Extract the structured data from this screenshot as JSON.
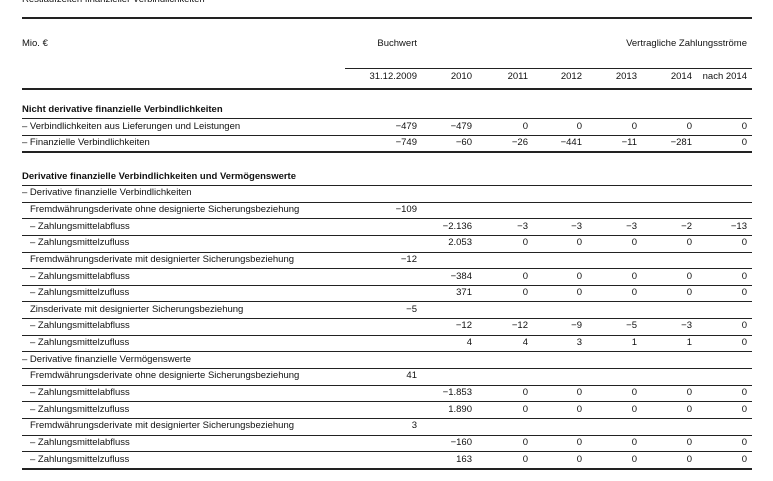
{
  "title": "Restlaufzeiten finanzieller Verbindlichkeiten",
  "table": {
    "unit": "Mio. €",
    "book_header": "Buchwert",
    "flow_header": "Vertragliche Zahlungsströme",
    "book_date": "31.12.2009",
    "years": [
      "2010",
      "2011",
      "2012",
      "2013",
      "2014",
      "nach 2014"
    ],
    "rows": [
      {
        "label": "Nicht derivative finanzielle Verbindlichkeiten",
        "kind": "section"
      },
      {
        "label": "– Verbindlichkeiten aus Lieferungen und Leistungen",
        "book": "−479",
        "flows": [
          "−479",
          "0",
          "0",
          "0",
          "0",
          "0"
        ]
      },
      {
        "label": "– Finanzielle Verbindlichkeiten",
        "book": "−749",
        "flows": [
          "−60",
          "−26",
          "−441",
          "−11",
          "−281",
          "0"
        ]
      },
      {
        "label": "Derivative finanzielle Verbindlichkeiten und Vermögenswerte",
        "kind": "section"
      },
      {
        "label": "– Derivative finanzielle Verbindlichkeiten"
      },
      {
        "label": "Fremdwährungsderivate ohne designierte Sicherungsbeziehung",
        "book": "−109",
        "kind": "indent"
      },
      {
        "label": "– Zahlungsmittelabfluss",
        "flows": [
          "−2.136",
          "−3",
          "−3",
          "−3",
          "−2",
          "−13"
        ],
        "kind": "indent"
      },
      {
        "label": "– Zahlungsmittelzufluss",
        "flows": [
          "2.053",
          "0",
          "0",
          "0",
          "0",
          "0"
        ],
        "kind": "indent"
      },
      {
        "label": "Fremdwährungsderivate mit designierter Sicherungsbeziehung",
        "book": "−12",
        "kind": "indent"
      },
      {
        "label": "– Zahlungsmittelabfluss",
        "flows": [
          "−384",
          "0",
          "0",
          "0",
          "0",
          "0"
        ],
        "kind": "indent"
      },
      {
        "label": "– Zahlungsmittelzufluss",
        "flows": [
          "371",
          "0",
          "0",
          "0",
          "0",
          "0"
        ],
        "kind": "indent"
      },
      {
        "label": "Zinsderivate mit designierter Sicherungsbeziehung",
        "book": "−5",
        "kind": "indent"
      },
      {
        "label": "– Zahlungsmittelabfluss",
        "flows": [
          "−12",
          "−12",
          "−9",
          "−5",
          "−3",
          "0"
        ],
        "kind": "indent"
      },
      {
        "label": "– Zahlungsmittelzufluss",
        "flows": [
          "4",
          "4",
          "3",
          "1",
          "1",
          "0"
        ],
        "kind": "indent"
      },
      {
        "label": "– Derivative finanzielle Vermögenswerte"
      },
      {
        "label": "Fremdwährungsderivate ohne designierte Sicherungsbeziehung",
        "book": "41",
        "kind": "indent"
      },
      {
        "label": "– Zahlungsmittelabfluss",
        "flows": [
          "−1.853",
          "0",
          "0",
          "0",
          "0",
          "0"
        ],
        "kind": "indent"
      },
      {
        "label": "– Zahlungsmittelzufluss",
        "flows": [
          "1.890",
          "0",
          "0",
          "0",
          "0",
          "0"
        ],
        "kind": "indent"
      },
      {
        "label": "Fremdwährungsderivate mit designierter Sicherungsbeziehung",
        "book": "3",
        "kind": "indent"
      },
      {
        "label": "– Zahlungsmittelabfluss",
        "flows": [
          "−160",
          "0",
          "0",
          "0",
          "0",
          "0"
        ],
        "kind": "indent"
      },
      {
        "label": "– Zahlungsmittelzufluss",
        "flows": [
          "163",
          "0",
          "0",
          "0",
          "0",
          "0"
        ],
        "kind": "indent"
      }
    ]
  }
}
